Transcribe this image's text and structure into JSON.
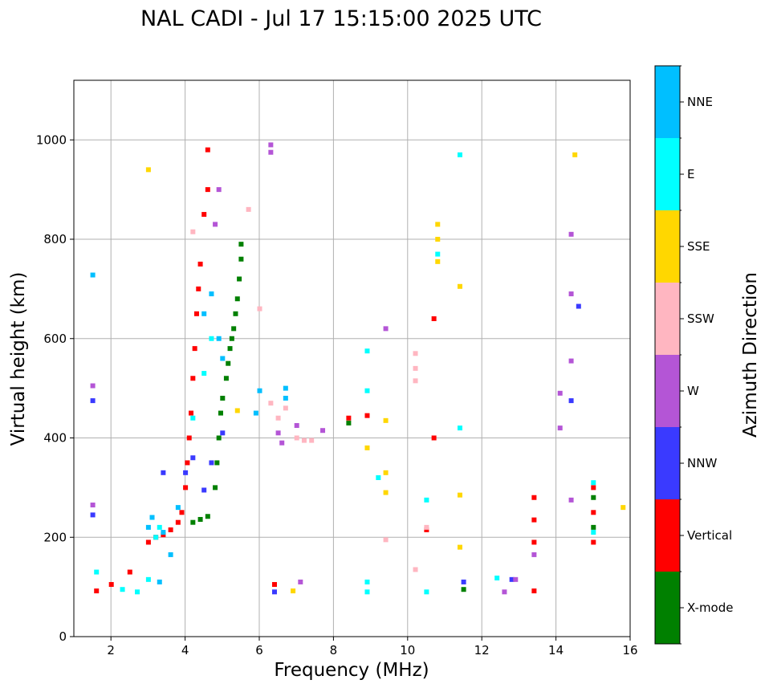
{
  "chart_data": {
    "type": "scatter",
    "title": "NAL CADI - Jul 17 15:15:00 2025 UTC",
    "xlabel": "Frequency (MHz)",
    "ylabel": "Virtual height (km)",
    "xlim": [
      1,
      16
    ],
    "ylim": [
      0,
      1120
    ],
    "xticks": [
      2,
      4,
      6,
      8,
      10,
      12,
      14,
      16
    ],
    "yticks": [
      0,
      200,
      400,
      600,
      800,
      1000
    ],
    "grid": true,
    "colorbar": {
      "label": "Azimuth Direction",
      "categories": [
        {
          "name": "X-mode",
          "color": "#008000"
        },
        {
          "name": "Vertical",
          "color": "#ff0000"
        },
        {
          "name": "NNW",
          "color": "#3a3aff"
        },
        {
          "name": "W",
          "color": "#b455d6"
        },
        {
          "name": "SSW",
          "color": "#ffb6c1"
        },
        {
          "name": "SSE",
          "color": "#ffd700"
        },
        {
          "name": "E",
          "color": "#00ffff"
        },
        {
          "name": "NNE",
          "color": "#00bfff"
        }
      ]
    },
    "series": [
      {
        "name": "X-mode",
        "points": [
          [
            4.2,
            230
          ],
          [
            4.4,
            236
          ],
          [
            4.6,
            242
          ],
          [
            4.8,
            300
          ],
          [
            4.85,
            350
          ],
          [
            4.9,
            400
          ],
          [
            4.95,
            450
          ],
          [
            5.0,
            480
          ],
          [
            5.1,
            520
          ],
          [
            5.15,
            550
          ],
          [
            5.2,
            580
          ],
          [
            5.25,
            600
          ],
          [
            5.3,
            620
          ],
          [
            5.35,
            650
          ],
          [
            5.4,
            680
          ],
          [
            5.45,
            720
          ],
          [
            5.5,
            760
          ],
          [
            5.5,
            790
          ],
          [
            8.4,
            430
          ],
          [
            11.5,
            95
          ],
          [
            15.0,
            220
          ],
          [
            15.0,
            280
          ]
        ]
      },
      {
        "name": "Vertical",
        "points": [
          [
            1.6,
            92
          ],
          [
            2.0,
            105
          ],
          [
            2.5,
            130
          ],
          [
            3.0,
            190
          ],
          [
            3.2,
            200
          ],
          [
            3.4,
            205
          ],
          [
            3.6,
            215
          ],
          [
            3.8,
            230
          ],
          [
            3.9,
            250
          ],
          [
            4.0,
            300
          ],
          [
            4.05,
            350
          ],
          [
            4.1,
            400
          ],
          [
            4.15,
            450
          ],
          [
            4.2,
            520
          ],
          [
            4.25,
            580
          ],
          [
            4.3,
            650
          ],
          [
            4.35,
            700
          ],
          [
            4.4,
            750
          ],
          [
            4.5,
            850
          ],
          [
            4.6,
            900
          ],
          [
            4.6,
            980
          ],
          [
            10.7,
            640
          ],
          [
            10.7,
            400
          ],
          [
            10.5,
            215
          ],
          [
            8.4,
            440
          ],
          [
            8.9,
            445
          ],
          [
            13.4,
            280
          ],
          [
            13.4,
            235
          ],
          [
            13.4,
            190
          ],
          [
            13.4,
            92
          ],
          [
            15.0,
            190
          ],
          [
            15.0,
            250
          ],
          [
            15.0,
            300
          ],
          [
            6.4,
            105
          ]
        ]
      },
      {
        "name": "NNW",
        "points": [
          [
            1.5,
            475
          ],
          [
            1.5,
            245
          ],
          [
            3.4,
            330
          ],
          [
            4.0,
            330
          ],
          [
            4.2,
            360
          ],
          [
            4.5,
            295
          ],
          [
            4.7,
            350
          ],
          [
            5.0,
            410
          ],
          [
            14.6,
            665
          ],
          [
            14.4,
            475
          ],
          [
            12.8,
            115
          ],
          [
            11.5,
            110
          ],
          [
            6.4,
            90
          ]
        ]
      },
      {
        "name": "W",
        "points": [
          [
            1.5,
            505
          ],
          [
            1.5,
            265
          ],
          [
            6.3,
            990
          ],
          [
            6.3,
            975
          ],
          [
            4.8,
            830
          ],
          [
            4.9,
            900
          ],
          [
            6.5,
            410
          ],
          [
            6.6,
            390
          ],
          [
            7.0,
            425
          ],
          [
            7.7,
            415
          ],
          [
            9.4,
            620
          ],
          [
            14.4,
            810
          ],
          [
            14.4,
            690
          ],
          [
            14.4,
            555
          ],
          [
            14.1,
            490
          ],
          [
            14.1,
            420
          ],
          [
            14.4,
            275
          ],
          [
            13.4,
            165
          ],
          [
            12.6,
            90
          ],
          [
            12.9,
            115
          ],
          [
            7.1,
            110
          ]
        ]
      },
      {
        "name": "SSW",
        "points": [
          [
            6.3,
            470
          ],
          [
            6.5,
            440
          ],
          [
            6.7,
            460
          ],
          [
            7.0,
            400
          ],
          [
            7.2,
            395
          ],
          [
            7.4,
            395
          ],
          [
            6.0,
            660
          ],
          [
            5.7,
            860
          ],
          [
            10.2,
            570
          ],
          [
            10.2,
            540
          ],
          [
            10.2,
            515
          ],
          [
            9.4,
            195
          ],
          [
            10.2,
            135
          ],
          [
            10.5,
            220
          ],
          [
            4.2,
            815
          ]
        ]
      },
      {
        "name": "SSE",
        "points": [
          [
            3.0,
            940
          ],
          [
            5.4,
            455
          ],
          [
            10.8,
            830
          ],
          [
            10.8,
            800
          ],
          [
            10.8,
            755
          ],
          [
            11.4,
            705
          ],
          [
            9.4,
            330
          ],
          [
            9.4,
            290
          ],
          [
            8.9,
            380
          ],
          [
            9.4,
            435
          ],
          [
            14.5,
            970
          ],
          [
            15.8,
            260
          ],
          [
            11.4,
            285
          ],
          [
            11.4,
            180
          ],
          [
            6.9,
            92
          ]
        ]
      },
      {
        "name": "E",
        "points": [
          [
            1.6,
            130
          ],
          [
            2.3,
            95
          ],
          [
            2.7,
            90
          ],
          [
            3.0,
            115
          ],
          [
            3.2,
            200
          ],
          [
            3.3,
            220
          ],
          [
            4.2,
            440
          ],
          [
            4.5,
            530
          ],
          [
            4.7,
            600
          ],
          [
            8.9,
            575
          ],
          [
            8.9,
            495
          ],
          [
            9.2,
            320
          ],
          [
            8.9,
            110
          ],
          [
            8.9,
            90
          ],
          [
            10.5,
            275
          ],
          [
            10.5,
            90
          ],
          [
            11.4,
            420
          ],
          [
            11.4,
            970
          ],
          [
            12.4,
            118
          ],
          [
            10.8,
            770
          ],
          [
            15.0,
            310
          ],
          [
            15.0,
            210
          ]
        ]
      },
      {
        "name": "NNE",
        "points": [
          [
            1.5,
            728
          ],
          [
            3.0,
            220
          ],
          [
            3.1,
            240
          ],
          [
            3.4,
            210
          ],
          [
            3.6,
            165
          ],
          [
            3.8,
            260
          ],
          [
            4.5,
            650
          ],
          [
            4.7,
            690
          ],
          [
            4.9,
            600
          ],
          [
            5.0,
            560
          ],
          [
            5.9,
            450
          ],
          [
            6.0,
            495
          ],
          [
            6.7,
            500
          ],
          [
            6.7,
            480
          ],
          [
            3.3,
            110
          ]
        ]
      }
    ]
  }
}
